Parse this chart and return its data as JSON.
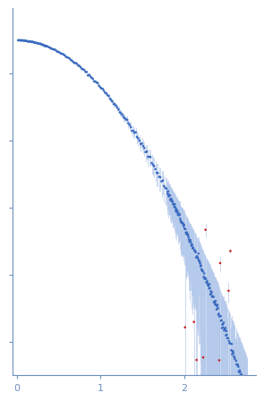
{
  "title": "",
  "xlabel": "",
  "ylabel": "",
  "xlim": [
    -0.05,
    2.85
  ],
  "dot_color": "#3a6bbf",
  "outlier_color": "#cc2222",
  "error_color": "#a8c0e8",
  "background_color": "#ffffff",
  "tick_color": "#7090c0",
  "spine_color": "#7090c0",
  "xticks": [
    0,
    1,
    2
  ],
  "dot_size": 3.5,
  "seed": 42,
  "Rg": 2.2,
  "I0_log10": 4.5,
  "n_low_q": 40,
  "n_mid_q": 100,
  "n_high_q": 180,
  "q_low_max": 0.35,
  "q_mid_max": 1.8,
  "q_high_max": 2.75,
  "n_outliers": 14,
  "outlier_q_min": 2.0
}
